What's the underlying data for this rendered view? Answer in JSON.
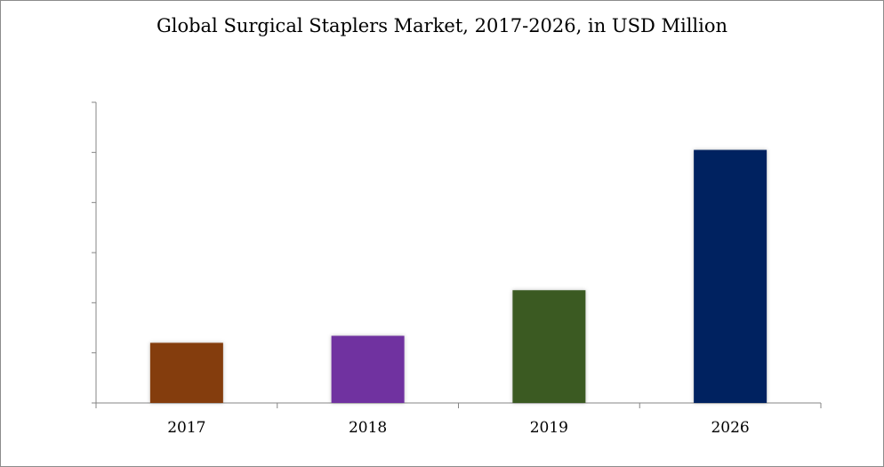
{
  "chart_data": {
    "type": "bar",
    "title": "Global Surgical Staplers Market, 2017-2026, in USD Million",
    "categories": [
      "2017",
      "2018",
      "2019",
      "2026"
    ],
    "values": [
      1.2,
      1.34,
      2.25,
      5.05
    ],
    "colors": [
      "#843c0c",
      "#7030a0",
      "#3b5a24",
      "#002060"
    ],
    "xlabel": "",
    "ylabel": "",
    "ylim": [
      0,
      6
    ],
    "y_tick_count": 6,
    "y_tick_labels_shown": false,
    "grid": false,
    "legend": "none"
  }
}
